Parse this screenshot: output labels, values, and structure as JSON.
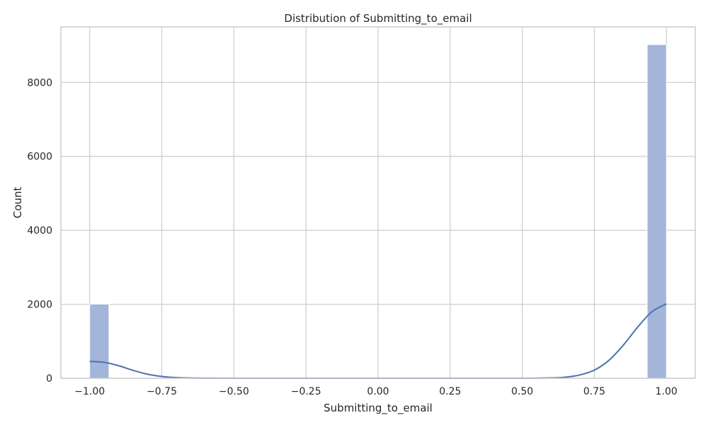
{
  "chart_data": {
    "type": "bar",
    "title": "Distribution of Submitting_to_email",
    "xlabel": "Submitting_to_email",
    "ylabel": "Count",
    "xlim": [
      -1.1,
      1.1
    ],
    "ylim": [
      0,
      9500
    ],
    "x_ticks": [
      -1.0,
      -0.75,
      -0.5,
      -0.25,
      0.0,
      0.25,
      0.5,
      0.75,
      1.0
    ],
    "x_tick_labels": [
      "−1.00",
      "−0.75",
      "−0.50",
      "−0.25",
      "0.00",
      "0.25",
      "0.50",
      "0.75",
      "1.00"
    ],
    "y_ticks": [
      0,
      2000,
      4000,
      6000,
      8000
    ],
    "y_tick_labels": [
      "0",
      "2000",
      "4000",
      "6000",
      "8000"
    ],
    "grid": true,
    "bars": [
      {
        "x0": -1.0,
        "x1": -0.9333,
        "count": 2005
      },
      {
        "x0": 0.9333,
        "x1": 1.0,
        "count": 9022
      }
    ],
    "kde": {
      "x": [
        -1.0,
        -0.95,
        -0.9,
        -0.85,
        -0.8,
        -0.75,
        -0.7,
        -0.65,
        -0.6,
        -0.5,
        -0.25,
        0.0,
        0.25,
        0.5,
        0.6,
        0.65,
        0.7,
        0.75,
        0.8,
        0.85,
        0.9,
        0.95,
        1.0
      ],
      "y": [
        455,
        430,
        340,
        215,
        110,
        48,
        18,
        6,
        2,
        0,
        0,
        0,
        0,
        0,
        10,
        30,
        90,
        220,
        480,
        890,
        1380,
        1800,
        2010
      ]
    },
    "colors": {
      "bar_fill": "#a3b5d8",
      "bar_stroke": "#ffffff",
      "kde_line": "#4c72b0",
      "grid": "#cccccc",
      "frame": "#cccccc"
    }
  }
}
